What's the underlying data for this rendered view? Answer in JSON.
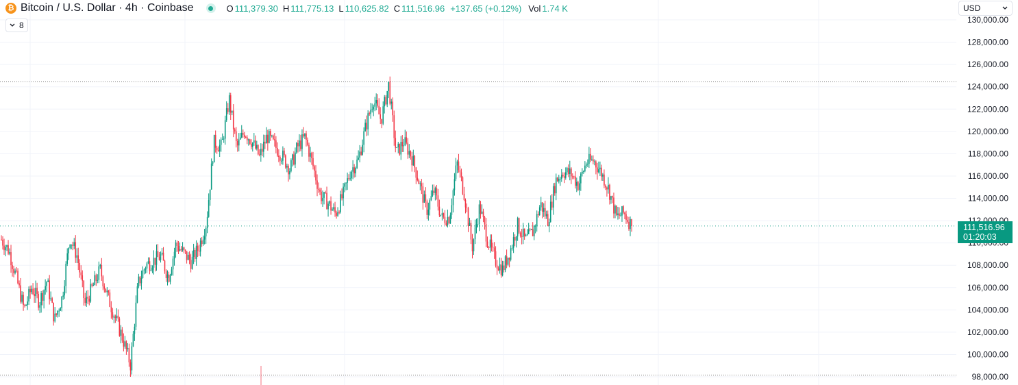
{
  "header": {
    "icon_glyph": "₿",
    "icon_name": "bitcoin-icon",
    "symbol_title": "Bitcoin / U.S. Dollar · 4h · Coinbase",
    "open_label": "O",
    "open": "111,379.30",
    "high_label": "H",
    "high": "111,775.13",
    "low_label": "L",
    "low": "110,625.82",
    "close_label": "C",
    "close": "111,516.96",
    "change": "+137.65 (+0.12%)",
    "vol_label": "Vol",
    "vol": "1.74 K",
    "collapse_count": "8"
  },
  "currency_select": {
    "value": "USD"
  },
  "price_badge": {
    "price": "111,516.96",
    "countdown": "01:20:03"
  },
  "colors": {
    "up": "#089981",
    "down": "#f23645",
    "grid": "#f0f3fa",
    "badge": "#089981"
  },
  "chart_data": {
    "type": "candlestick",
    "title": "Bitcoin / U.S. Dollar · 4h · Coinbase",
    "y_axis": {
      "ticks": [
        130000,
        128000,
        126000,
        124000,
        122000,
        120000,
        118000,
        116000,
        114000,
        112000,
        110000,
        108000,
        106000,
        104000,
        102000,
        100000,
        98000
      ],
      "tick_labels": [
        "130,000.00",
        "128,000.00",
        "126,000.00",
        "124,000.00",
        "122,000.00",
        "120,000.00",
        "118,000.00",
        "116,000.00",
        "114,000.00",
        "112,000.00",
        "110,000.00",
        "108,000.00",
        "106,000.00",
        "104,000.00",
        "102,000.00",
        "100,000.00",
        "98,000.00"
      ],
      "range": [
        97700,
        131600
      ]
    },
    "grid": true,
    "reference_lines": [
      {
        "kind": "high",
        "value": 124450
      },
      {
        "kind": "low",
        "value": 98150
      },
      {
        "kind": "last",
        "value": 111516.96
      }
    ],
    "series_trend_close": [
      110300,
      109300,
      106800,
      104000,
      106000,
      104700,
      106600,
      103100,
      105100,
      110500,
      108800,
      104500,
      106000,
      107600,
      105200,
      103300,
      101400,
      99100,
      106300,
      108000,
      108400,
      108800,
      106900,
      109900,
      109100,
      108300,
      109600,
      111800,
      119000,
      118600,
      122900,
      118500,
      120000,
      119100,
      117700,
      119600,
      118700,
      117800,
      116600,
      118600,
      119500,
      117000,
      114300,
      113600,
      112600,
      114300,
      116500,
      117400,
      120500,
      122900,
      121000,
      124200,
      118000,
      119100,
      117800,
      115500,
      112900,
      114700,
      112200,
      112300,
      117200,
      114300,
      109600,
      113300,
      110300,
      108500,
      107600,
      109300,
      111600,
      110200,
      111000,
      113500,
      112000,
      115600,
      116400,
      116200,
      115200,
      117200,
      117400,
      116300,
      114800,
      112300,
      112700,
      111517
    ],
    "candles_omitted_note": ""
  }
}
